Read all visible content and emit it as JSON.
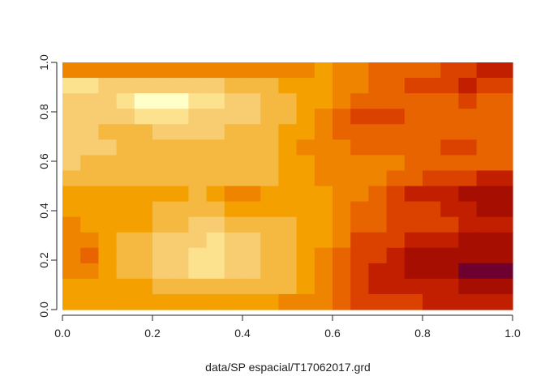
{
  "chart_data": {
    "type": "heatmap",
    "title": "",
    "xlabel": "data/SP espacial/T17062017.grd",
    "ylabel": "",
    "xlim": [
      0.0,
      1.0
    ],
    "ylim": [
      0.0,
      1.0
    ],
    "x_ticks": [
      "0.0",
      "0.2",
      "0.4",
      "0.6",
      "0.8",
      "1.0"
    ],
    "y_ticks": [
      "0.0",
      "0.2",
      "0.4",
      "0.6",
      "0.8",
      "1.0"
    ],
    "legend": "none",
    "grid": false,
    "palette": [
      "#FFFFC8",
      "#FCE28E",
      "#F8CC70",
      "#F5B840",
      "#F3A000",
      "#EE8400",
      "#E86400",
      "#DB4200",
      "#C21F00",
      "#A50E00",
      "#6E0030"
    ],
    "grid_rows_top_to_bottom": [
      [
        5,
        5,
        5,
        5,
        5,
        5,
        5,
        5,
        5,
        5,
        5,
        5,
        5,
        5,
        4,
        5,
        5,
        6,
        6,
        6,
        6,
        7,
        7,
        8,
        8
      ],
      [
        1,
        1,
        2,
        2,
        2,
        2,
        2,
        2,
        2,
        3,
        3,
        3,
        4,
        4,
        4,
        5,
        5,
        6,
        6,
        7,
        7,
        7,
        8,
        7,
        7
      ],
      [
        2,
        2,
        2,
        1,
        0,
        0,
        0,
        1,
        1,
        2,
        2,
        3,
        3,
        4,
        4,
        5,
        6,
        6,
        6,
        6,
        6,
        6,
        7,
        6,
        6
      ],
      [
        2,
        2,
        2,
        2,
        1,
        1,
        1,
        2,
        2,
        2,
        2,
        3,
        3,
        4,
        5,
        6,
        7,
        7,
        7,
        6,
        6,
        6,
        6,
        6,
        6
      ],
      [
        2,
        2,
        3,
        3,
        3,
        2,
        2,
        2,
        2,
        3,
        3,
        3,
        4,
        4,
        5,
        6,
        6,
        6,
        6,
        6,
        6,
        6,
        6,
        6,
        6
      ],
      [
        2,
        2,
        2,
        3,
        3,
        3,
        3,
        3,
        3,
        3,
        3,
        3,
        4,
        5,
        5,
        5,
        6,
        6,
        6,
        6,
        6,
        7,
        7,
        6,
        6
      ],
      [
        2,
        3,
        3,
        3,
        3,
        3,
        3,
        3,
        3,
        3,
        3,
        3,
        4,
        4,
        5,
        5,
        5,
        5,
        5,
        6,
        6,
        6,
        6,
        6,
        6
      ],
      [
        3,
        3,
        3,
        3,
        3,
        3,
        3,
        3,
        3,
        3,
        3,
        3,
        4,
        4,
        5,
        5,
        5,
        5,
        6,
        6,
        7,
        7,
        7,
        8,
        8
      ],
      [
        4,
        4,
        4,
        4,
        4,
        4,
        4,
        3,
        4,
        5,
        5,
        4,
        4,
        4,
        4,
        5,
        5,
        6,
        7,
        8,
        8,
        8,
        9,
        9,
        9
      ],
      [
        4,
        4,
        4,
        4,
        4,
        3,
        3,
        3,
        3,
        4,
        4,
        4,
        4,
        4,
        4,
        5,
        6,
        6,
        7,
        7,
        7,
        8,
        8,
        9,
        9
      ],
      [
        5,
        4,
        4,
        4,
        4,
        3,
        3,
        2,
        2,
        3,
        3,
        3,
        3,
        4,
        4,
        5,
        6,
        6,
        7,
        7,
        7,
        7,
        8,
        8,
        8
      ],
      [
        5,
        5,
        4,
        3,
        3,
        2,
        2,
        2,
        1,
        2,
        2,
        3,
        3,
        4,
        4,
        5,
        7,
        7,
        7,
        8,
        8,
        8,
        9,
        9,
        9
      ],
      [
        5,
        6,
        4,
        3,
        3,
        2,
        2,
        1,
        1,
        2,
        2,
        3,
        3,
        4,
        5,
        6,
        7,
        7,
        8,
        9,
        9,
        9,
        9,
        9,
        9
      ],
      [
        5,
        5,
        4,
        3,
        3,
        2,
        2,
        1,
        1,
        2,
        2,
        3,
        3,
        4,
        5,
        6,
        7,
        8,
        8,
        9,
        9,
        9,
        10,
        10,
        10
      ],
      [
        4,
        4,
        4,
        4,
        4,
        3,
        3,
        3,
        3,
        3,
        3,
        3,
        3,
        4,
        5,
        6,
        7,
        8,
        8,
        8,
        8,
        8,
        9,
        9,
        9
      ],
      [
        4,
        4,
        4,
        4,
        4,
        4,
        4,
        4,
        4,
        4,
        4,
        4,
        5,
        5,
        5,
        6,
        7,
        7,
        7,
        7,
        8,
        8,
        8,
        8,
        8
      ]
    ]
  }
}
